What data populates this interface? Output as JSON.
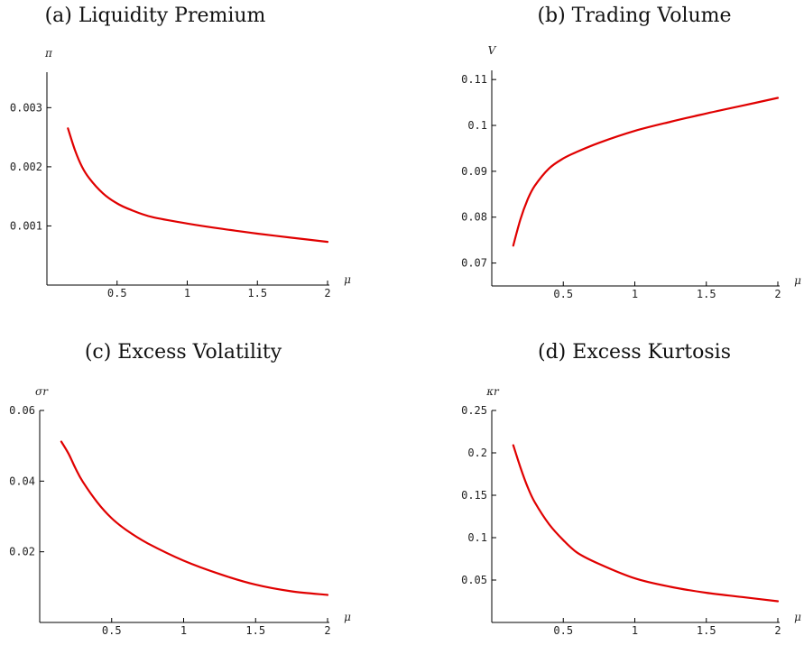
{
  "chart_data": [
    {
      "id": "a",
      "type": "line",
      "title": "(a) Liquidity Premium",
      "xlabel": "μ",
      "ylabel": "π",
      "xlim": [
        0.0,
        2.0
      ],
      "ylim": [
        0.0,
        0.0036
      ],
      "xticks": [
        0.5,
        1,
        1.5,
        2
      ],
      "xtick_labels": [
        "0.5",
        "1",
        "1.5",
        "2"
      ],
      "yticks": [
        0.001,
        0.002,
        0.003
      ],
      "ytick_labels": [
        "0.001",
        "0.002",
        "0.003"
      ],
      "color": "#e00000",
      "series": [
        {
          "x": [
            0.15,
            0.2,
            0.25,
            0.3,
            0.4,
            0.5,
            0.6,
            0.75,
            1.0,
            1.25,
            1.5,
            1.75,
            2.0
          ],
          "y": [
            0.00265,
            0.00228,
            0.002,
            0.00181,
            0.00155,
            0.00138,
            0.00127,
            0.00115,
            0.00104,
            0.00095,
            0.00087,
            0.0008,
            0.00073
          ]
        }
      ]
    },
    {
      "id": "b",
      "type": "line",
      "title": "(b) Trading Volume",
      "xlabel": "μ",
      "ylabel": "V",
      "xlim": [
        0.0,
        2.0
      ],
      "ylim": [
        0.065,
        0.112
      ],
      "xticks": [
        0.5,
        1,
        1.5,
        2
      ],
      "xtick_labels": [
        "0.5",
        "1",
        "1.5",
        "2"
      ],
      "yticks": [
        0.07,
        0.08,
        0.09,
        0.1,
        0.11
      ],
      "ytick_labels": [
        "0.07",
        "0.08",
        "0.09",
        "0.1",
        "0.11"
      ],
      "color": "#e00000",
      "series": [
        {
          "x": [
            0.15,
            0.2,
            0.25,
            0.3,
            0.4,
            0.5,
            0.6,
            0.75,
            1.0,
            1.25,
            1.5,
            1.75,
            2.0
          ],
          "y": [
            0.0738,
            0.0795,
            0.0838,
            0.0868,
            0.0906,
            0.0928,
            0.0943,
            0.0962,
            0.0988,
            0.1008,
            0.1026,
            0.1043,
            0.106
          ]
        }
      ]
    },
    {
      "id": "c",
      "type": "line",
      "title": "(c) Excess Volatility",
      "xlabel": "μ",
      "ylabel": "σr",
      "xlim": [
        0.0,
        2.0
      ],
      "ylim": [
        0.0,
        0.06
      ],
      "xticks": [
        0.5,
        1,
        1.5,
        2
      ],
      "xtick_labels": [
        "0.5",
        "1",
        "1.5",
        "2"
      ],
      "yticks": [
        0.02,
        0.04,
        0.06
      ],
      "ytick_labels": [
        "0.02",
        "0.04",
        "0.06"
      ],
      "color": "#e00000",
      "series": [
        {
          "x": [
            0.15,
            0.2,
            0.25,
            0.3,
            0.4,
            0.5,
            0.6,
            0.75,
            1.0,
            1.25,
            1.5,
            1.75,
            2.0
          ],
          "y": [
            0.0512,
            0.0478,
            0.0435,
            0.0398,
            0.034,
            0.0295,
            0.0262,
            0.0224,
            0.0175,
            0.0137,
            0.0107,
            0.0088,
            0.0078
          ]
        }
      ]
    },
    {
      "id": "d",
      "type": "line",
      "title": "(d) Excess Kurtosis",
      "xlabel": "μ",
      "ylabel": "κr",
      "xlim": [
        0.0,
        2.0
      ],
      "ylim": [
        0.0,
        0.25
      ],
      "xticks": [
        0.5,
        1,
        1.5,
        2
      ],
      "xtick_labels": [
        "0.5",
        "1",
        "1.5",
        "2"
      ],
      "yticks": [
        0.05,
        0.1,
        0.15,
        0.2,
        0.25
      ],
      "ytick_labels": [
        "0.05",
        "0.1",
        "0.15",
        "0.2",
        "0.25"
      ],
      "color": "#e00000",
      "series": [
        {
          "x": [
            0.15,
            0.2,
            0.25,
            0.3,
            0.4,
            0.5,
            0.6,
            0.75,
            1.0,
            1.25,
            1.5,
            1.75,
            2.0
          ],
          "y": [
            0.209,
            0.183,
            0.16,
            0.142,
            0.116,
            0.097,
            0.082,
            0.069,
            0.052,
            0.042,
            0.035,
            0.03,
            0.025
          ]
        }
      ]
    }
  ]
}
